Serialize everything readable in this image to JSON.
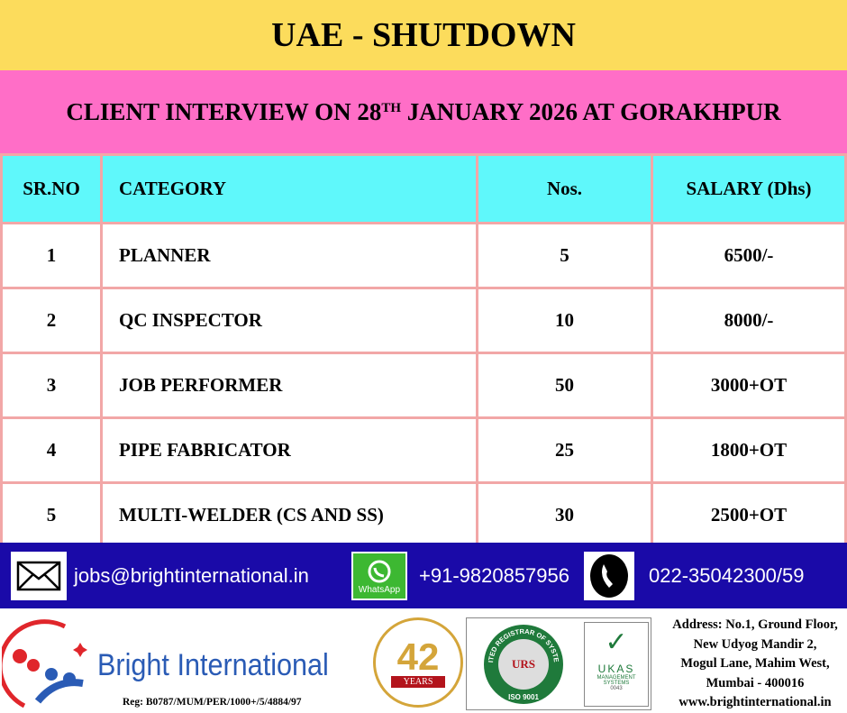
{
  "header": {
    "title": "UAE - SHUTDOWN",
    "subtitle_pre": "CLIENT INTERVIEW ON 28",
    "subtitle_sup": "TH",
    "subtitle_post": " JANUARY 2026 AT GORAKHPUR"
  },
  "table": {
    "headers": [
      "SR.NO",
      "CATEGORY",
      "Nos.",
      "SALARY (Dhs)"
    ],
    "rows": [
      [
        "1",
        "PLANNER",
        "5",
        "6500/-"
      ],
      [
        "2",
        "QC INSPECTOR",
        "10",
        "8000/-"
      ],
      [
        "3",
        "JOB PERFORMER",
        "50",
        "3000+OT"
      ],
      [
        "4",
        "PIPE FABRICATOR",
        "25",
        "1800+OT"
      ],
      [
        "5",
        "MULTI-WELDER (CS AND SS)",
        "30",
        "2500+OT"
      ]
    ]
  },
  "contact": {
    "email": "jobs@brightinternational.in",
    "whatsapp_label": "WhatsApp",
    "whatsapp": "+91-9820857956",
    "phone": "022-35042300/59"
  },
  "footer": {
    "brand": "Bright International",
    "reg": "Reg: B0787/MUM/PER/1000+/5/4884/97",
    "years": "42",
    "years_label": "YEARS",
    "urs": "URS",
    "iso": "ISO 9001",
    "urs_ring": "UNITED REGISTRAR OF SYSTEMS",
    "ukas": "UKAS",
    "ukas_sub": "MANAGEMENT SYSTEMS",
    "ukas_no": "0043",
    "address": [
      "Address: No.1, Ground Floor,",
      "New Udyog Mandir 2,",
      "Mogul Lane, Mahim West,",
      "Mumbai - 400016",
      "www.brightinternational.in"
    ]
  },
  "colors": {
    "yellow": "#fcdc5c",
    "pink": "#ff6ec7",
    "cyan": "#5ff8fb",
    "blue": "#1a0aa8",
    "border": "#f2a7a7"
  }
}
